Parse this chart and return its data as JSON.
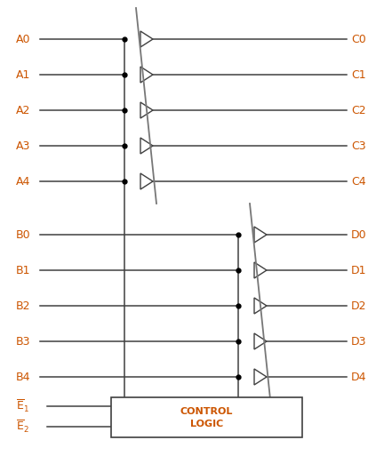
{
  "fig_width": 4.32,
  "fig_height": 5.22,
  "bg_color": "#ffffff",
  "line_color": "#404040",
  "text_color": "#cc5500",
  "A_labels": [
    "A0",
    "A1",
    "A2",
    "A3",
    "A4"
  ],
  "B_labels": [
    "B0",
    "B1",
    "B2",
    "B3",
    "B4"
  ],
  "C_labels": [
    "C0",
    "C1",
    "C2",
    "C3",
    "C4"
  ],
  "D_labels": [
    "D0",
    "D1",
    "D2",
    "D3",
    "D4"
  ],
  "label_fontsize": 9,
  "ctrl_text_fontsize": 8
}
